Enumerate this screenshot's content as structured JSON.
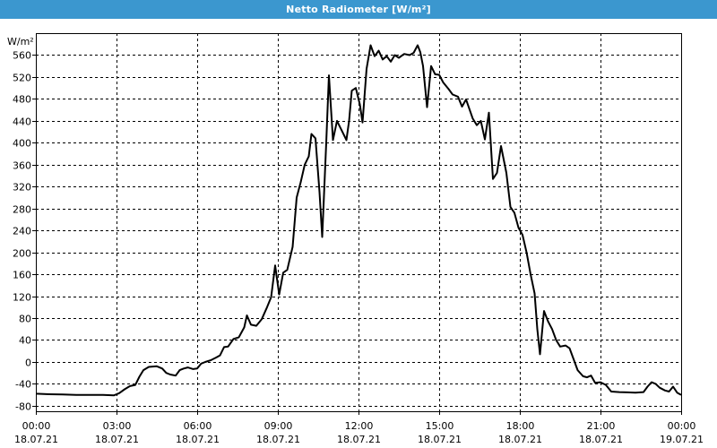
{
  "window": {
    "title": "Netto Radiometer [W/m²]"
  },
  "chart_data": {
    "type": "line",
    "title": "Netto Radiometer [W/m²]",
    "ylabel": "W/m²",
    "xlabel": "",
    "ylim": [
      -90,
      600
    ],
    "yticks": [
      -80,
      -40,
      0,
      40,
      80,
      120,
      160,
      200,
      240,
      280,
      320,
      360,
      400,
      440,
      480,
      520,
      560
    ],
    "xlim": [
      0,
      24
    ],
    "xticks": [
      {
        "x": 0,
        "label1": "00:00",
        "label2": "18.07.21"
      },
      {
        "x": 3,
        "label1": "03:00",
        "label2": "18.07.21"
      },
      {
        "x": 6,
        "label1": "06:00",
        "label2": "18.07.21"
      },
      {
        "x": 9,
        "label1": "09:00",
        "label2": "18.07.21"
      },
      {
        "x": 12,
        "label1": "12:00",
        "label2": "18.07.21"
      },
      {
        "x": 15,
        "label1": "15:00",
        "label2": "18.07.21"
      },
      {
        "x": 18,
        "label1": "18:00",
        "label2": "18.07.21"
      },
      {
        "x": 21,
        "label1": "21:00",
        "label2": "18.07.21"
      },
      {
        "x": 24,
        "label1": "00:00",
        "label2": "19.07.21"
      }
    ],
    "grid": true,
    "series": [
      {
        "color": "#000000",
        "points": [
          [
            0.0,
            -58
          ],
          [
            0.5,
            -59
          ],
          [
            1.0,
            -59.5
          ],
          [
            1.5,
            -60
          ],
          [
            2.0,
            -60
          ],
          [
            2.5,
            -60
          ],
          [
            2.9,
            -61
          ],
          [
            3.1,
            -57
          ],
          [
            3.3,
            -50
          ],
          [
            3.5,
            -44
          ],
          [
            3.7,
            -42
          ],
          [
            3.85,
            -27
          ],
          [
            4.0,
            -15
          ],
          [
            4.2,
            -9
          ],
          [
            4.5,
            -8
          ],
          [
            4.7,
            -12
          ],
          [
            4.85,
            -20
          ],
          [
            5.0,
            -23
          ],
          [
            5.2,
            -25
          ],
          [
            5.35,
            -15
          ],
          [
            5.5,
            -12
          ],
          [
            5.65,
            -10
          ],
          [
            5.85,
            -13
          ],
          [
            6.0,
            -12
          ],
          [
            6.15,
            -3
          ],
          [
            6.3,
            0
          ],
          [
            6.5,
            3
          ],
          [
            6.7,
            8
          ],
          [
            6.85,
            12
          ],
          [
            7.0,
            27
          ],
          [
            7.15,
            28
          ],
          [
            7.35,
            42
          ],
          [
            7.55,
            45
          ],
          [
            7.75,
            63
          ],
          [
            7.85,
            85
          ],
          [
            8.0,
            68
          ],
          [
            8.2,
            66
          ],
          [
            8.4,
            78
          ],
          [
            8.6,
            100
          ],
          [
            8.75,
            118
          ],
          [
            8.9,
            176
          ],
          [
            9.05,
            123
          ],
          [
            9.2,
            163
          ],
          [
            9.35,
            168
          ],
          [
            9.55,
            210
          ],
          [
            9.7,
            300
          ],
          [
            9.85,
            328
          ],
          [
            10.0,
            360
          ],
          [
            10.15,
            375
          ],
          [
            10.25,
            416
          ],
          [
            10.4,
            408
          ],
          [
            10.55,
            310
          ],
          [
            10.65,
            228
          ],
          [
            10.8,
            400
          ],
          [
            10.9,
            523
          ],
          [
            11.05,
            405
          ],
          [
            11.2,
            440
          ],
          [
            11.4,
            420
          ],
          [
            11.55,
            405
          ],
          [
            11.65,
            440
          ],
          [
            11.75,
            495
          ],
          [
            11.9,
            500
          ],
          [
            12.05,
            470
          ],
          [
            12.15,
            437
          ],
          [
            12.3,
            535
          ],
          [
            12.45,
            578
          ],
          [
            12.6,
            558
          ],
          [
            12.75,
            568
          ],
          [
            12.9,
            552
          ],
          [
            13.05,
            558
          ],
          [
            13.2,
            548
          ],
          [
            13.35,
            560
          ],
          [
            13.5,
            555
          ],
          [
            13.7,
            562
          ],
          [
            13.9,
            560
          ],
          [
            14.05,
            564
          ],
          [
            14.2,
            578
          ],
          [
            14.3,
            565
          ],
          [
            14.4,
            540
          ],
          [
            14.55,
            465
          ],
          [
            14.7,
            540
          ],
          [
            14.85,
            525
          ],
          [
            15.0,
            524
          ],
          [
            15.15,
            510
          ],
          [
            15.35,
            498
          ],
          [
            15.5,
            488
          ],
          [
            15.7,
            484
          ],
          [
            15.85,
            466
          ],
          [
            16.0,
            479
          ],
          [
            16.1,
            465
          ],
          [
            16.25,
            444
          ],
          [
            16.4,
            432
          ],
          [
            16.55,
            440
          ],
          [
            16.7,
            406
          ],
          [
            16.85,
            455
          ],
          [
            17.0,
            334
          ],
          [
            17.15,
            345
          ],
          [
            17.3,
            394
          ],
          [
            17.5,
            345
          ],
          [
            17.65,
            283
          ],
          [
            17.8,
            272
          ],
          [
            17.95,
            245
          ],
          [
            18.1,
            232
          ],
          [
            18.25,
            200
          ],
          [
            18.4,
            160
          ],
          [
            18.55,
            125
          ],
          [
            18.65,
            60
          ],
          [
            18.75,
            14
          ],
          [
            18.9,
            93
          ],
          [
            19.05,
            74
          ],
          [
            19.2,
            60
          ],
          [
            19.35,
            40
          ],
          [
            19.5,
            28
          ],
          [
            19.7,
            30
          ],
          [
            19.85,
            25
          ],
          [
            20.0,
            5
          ],
          [
            20.15,
            -15
          ],
          [
            20.35,
            -26
          ],
          [
            20.5,
            -28
          ],
          [
            20.65,
            -25
          ],
          [
            20.8,
            -38
          ],
          [
            21.0,
            -37
          ],
          [
            21.2,
            -42
          ],
          [
            21.4,
            -54
          ],
          [
            21.7,
            -55
          ],
          [
            22.0,
            -55.5
          ],
          [
            22.3,
            -56
          ],
          [
            22.6,
            -55
          ],
          [
            22.75,
            -45
          ],
          [
            22.9,
            -37
          ],
          [
            23.05,
            -40
          ],
          [
            23.2,
            -47
          ],
          [
            23.4,
            -52
          ],
          [
            23.55,
            -54
          ],
          [
            23.7,
            -45
          ],
          [
            23.85,
            -56
          ],
          [
            24.0,
            -60
          ]
        ]
      }
    ]
  }
}
